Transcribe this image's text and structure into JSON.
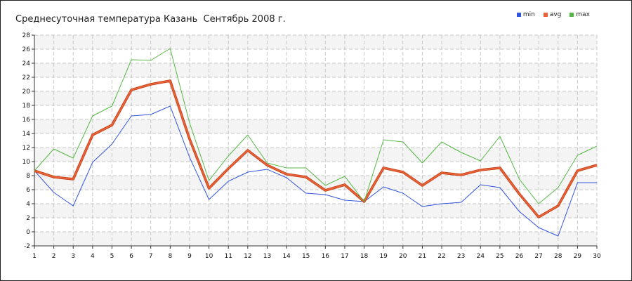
{
  "chart_data": {
    "type": "line",
    "title": "Среднесуточная температура Казань  Сентябрь 2008 г.",
    "x": [
      1,
      2,
      3,
      4,
      5,
      6,
      7,
      8,
      9,
      10,
      11,
      12,
      13,
      14,
      15,
      16,
      17,
      18,
      19,
      20,
      21,
      22,
      23,
      24,
      25,
      26,
      27,
      28,
      29,
      30
    ],
    "ylim": [
      -2,
      28
    ],
    "yticks": [
      -2,
      0,
      2,
      4,
      6,
      8,
      10,
      12,
      14,
      16,
      18,
      20,
      22,
      24,
      26,
      28
    ],
    "grid": true,
    "legend_position": "top-right",
    "series": [
      {
        "name": "min",
        "color": "#3355dd",
        "values": [
          8.7,
          5.6,
          3.7,
          9.9,
          12.5,
          16.5,
          16.7,
          17.9,
          10.6,
          4.6,
          7.2,
          8.5,
          8.9,
          7.7,
          5.5,
          5.3,
          4.5,
          4.3,
          6.4,
          5.5,
          3.6,
          4.0,
          4.2,
          6.7,
          6.3,
          2.9,
          0.6,
          -0.6,
          7.0,
          7.0
        ]
      },
      {
        "name": "avg",
        "color": "#e8643a",
        "values": [
          8.7,
          7.8,
          7.5,
          13.8,
          15.2,
          20.2,
          21.0,
          21.5,
          13.2,
          6.2,
          9.0,
          11.6,
          9.5,
          8.2,
          7.8,
          5.9,
          6.7,
          4.3,
          9.1,
          8.5,
          6.6,
          8.4,
          8.1,
          8.8,
          9.1,
          5.4,
          2.1,
          3.7,
          8.7,
          9.5
        ]
      },
      {
        "name": "max",
        "color": "#55b844",
        "values": [
          8.7,
          11.8,
          10.5,
          16.5,
          17.9,
          24.5,
          24.4,
          26.1,
          15.5,
          7.3,
          10.8,
          13.8,
          9.8,
          9.1,
          9.1,
          6.6,
          7.9,
          4.3,
          13.1,
          12.8,
          9.8,
          12.8,
          11.3,
          10.1,
          13.6,
          7.5,
          4.0,
          6.3,
          10.9,
          12.2
        ]
      }
    ]
  }
}
